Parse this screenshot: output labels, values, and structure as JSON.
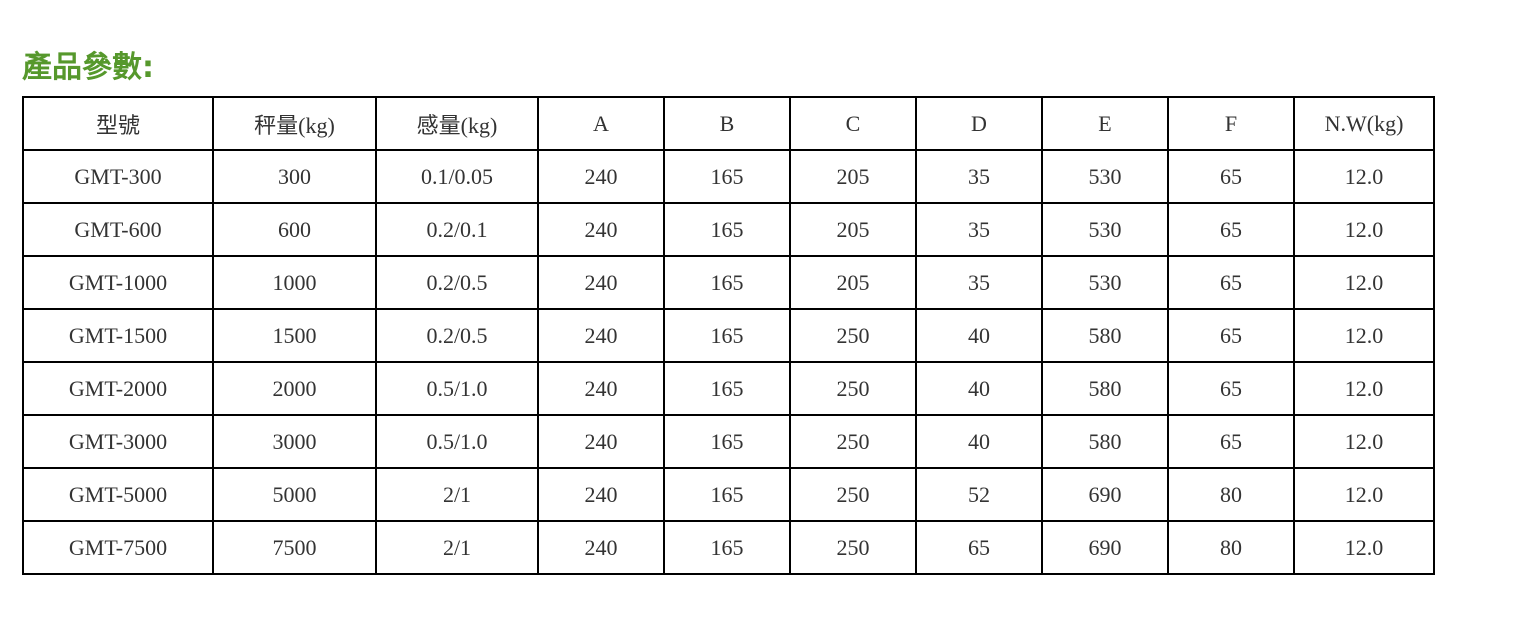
{
  "title": "產品參數:",
  "colors": {
    "title": "#56982c",
    "border": "#000000",
    "text": "#333333"
  },
  "table": {
    "headers": [
      "型號",
      "秤量(kg)",
      "感量(kg)",
      "A",
      "B",
      "C",
      "D",
      "E",
      "F",
      "N.W(kg)"
    ],
    "rows": [
      [
        "GMT-300",
        "300",
        "0.1/0.05",
        "240",
        "165",
        "205",
        "35",
        "530",
        "65",
        "12.0"
      ],
      [
        "GMT-600",
        "600",
        "0.2/0.1",
        "240",
        "165",
        "205",
        "35",
        "530",
        "65",
        "12.0"
      ],
      [
        "GMT-1000",
        "1000",
        "0.2/0.5",
        "240",
        "165",
        "205",
        "35",
        "530",
        "65",
        "12.0"
      ],
      [
        "GMT-1500",
        "1500",
        "0.2/0.5",
        "240",
        "165",
        "250",
        "40",
        "580",
        "65",
        "12.0"
      ],
      [
        "GMT-2000",
        "2000",
        "0.5/1.0",
        "240",
        "165",
        "250",
        "40",
        "580",
        "65",
        "12.0"
      ],
      [
        "GMT-3000",
        "3000",
        "0.5/1.0",
        "240",
        "165",
        "250",
        "40",
        "580",
        "65",
        "12.0"
      ],
      [
        "GMT-5000",
        "5000",
        "2/1",
        "240",
        "165",
        "250",
        "52",
        "690",
        "80",
        "12.0"
      ],
      [
        "GMT-7500",
        "7500",
        "2/1",
        "240",
        "165",
        "250",
        "65",
        "690",
        "80",
        "12.0"
      ]
    ]
  }
}
